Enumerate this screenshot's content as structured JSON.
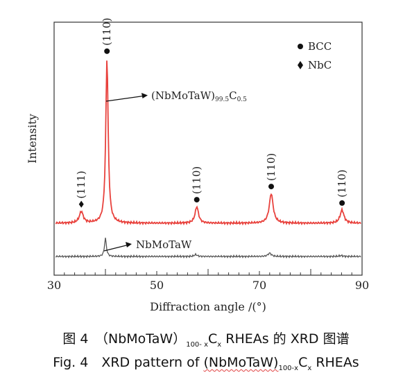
{
  "chart_data": {
    "type": "line",
    "xlabel": "Diffraction angle /(°)",
    "ylabel": "Intensity",
    "xlim": [
      30,
      90
    ],
    "x_ticks": [
      "30",
      "50",
      "70",
      "90"
    ],
    "grid": false,
    "legend": {
      "placement": "top-right",
      "entries": [
        {
          "marker": "circle",
          "label": "BCC"
        },
        {
          "marker": "diamond",
          "label": "NbC"
        }
      ]
    },
    "series": [
      {
        "name": "(NbMoTaW)99.5C0.5",
        "color": "#e8413c",
        "baseline": 0.0,
        "peaks": [
          {
            "x": 35.3,
            "height": 0.07,
            "width": 0.45
          },
          {
            "x": 40.3,
            "height": 1.0,
            "width": 0.28
          },
          {
            "x": 57.8,
            "height": 0.1,
            "width": 0.4
          },
          {
            "x": 72.3,
            "height": 0.18,
            "width": 0.45
          },
          {
            "x": 86.1,
            "height": 0.08,
            "width": 0.45
          }
        ]
      },
      {
        "name": "NbMoTaW",
        "color": "#555555",
        "baseline": 0.0,
        "peaks": [
          {
            "x": 40.0,
            "height": 0.12,
            "width": 0.22
          },
          {
            "x": 57.6,
            "height": 0.012,
            "width": 0.35
          },
          {
            "x": 72.0,
            "height": 0.022,
            "width": 0.4
          },
          {
            "x": 85.9,
            "height": 0.006,
            "width": 0.4
          }
        ]
      }
    ],
    "peak_labels": [
      {
        "x": 35.3,
        "label": "(111)",
        "phase": "diamond"
      },
      {
        "x": 40.3,
        "label": "(110)",
        "phase": "circle"
      },
      {
        "x": 57.8,
        "label": "(110)",
        "phase": "circle"
      },
      {
        "x": 72.3,
        "label": "(110)",
        "phase": "circle"
      },
      {
        "x": 86.1,
        "label": "(110)",
        "phase": "circle"
      }
    ],
    "annotations": [
      {
        "base": "(NbMoTaW)",
        "sub1": "99.5",
        "mid": "C",
        "sub2": "0.5"
      },
      {
        "text": "NbMoTaW"
      }
    ]
  },
  "caption": {
    "zh": {
      "lead": "图 4　（NbMoTaW）",
      "sub": "100- x",
      "c": "C",
      "csub": "x",
      "tail": " RHEAs 的 XRD 图谱"
    },
    "en": {
      "lead": "Fig. 4　XRD pattern of ",
      "name": "(NbMoTaW)",
      "sub": "100-x",
      "c": "C",
      "csub": "x",
      "tail": " RHEAs"
    }
  }
}
